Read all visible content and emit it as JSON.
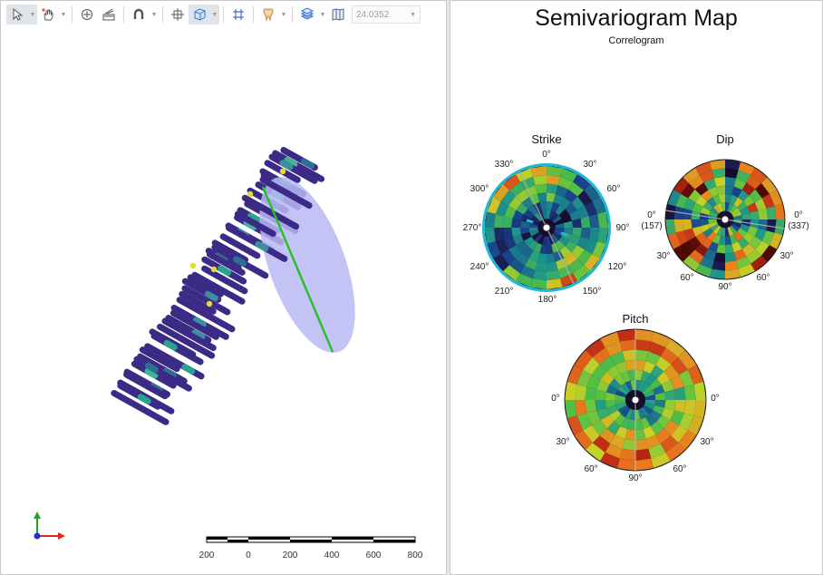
{
  "toolbar": {
    "tools": [
      {
        "icon": "select-arrow-icon",
        "dropdown": true
      },
      {
        "icon": "pan-hand-icon",
        "dropdown": true
      },
      {
        "icon": "look-at-icon",
        "dropdown": false
      },
      {
        "icon": "slice-plane-icon",
        "dropdown": false
      },
      {
        "icon": "magnet-icon",
        "dropdown": true
      },
      {
        "icon": "bounding-box-icon",
        "dropdown": false
      },
      {
        "icon": "view-cube-icon",
        "dropdown": true
      },
      {
        "icon": "grid-icon",
        "dropdown": false
      },
      {
        "icon": "tooth-shape-icon",
        "dropdown": true
      },
      {
        "icon": "layers-icon",
        "dropdown": true
      },
      {
        "icon": "map-icon",
        "dropdown": false
      }
    ],
    "zoom_value": "24.0352"
  },
  "scale_bar": {
    "labels": [
      "200",
      "0",
      "200",
      "400",
      "600",
      "800"
    ]
  },
  "semivariogram": {
    "title": "Semivariogram Map",
    "subtitle": "Correlogram",
    "strike": {
      "title": "Strike",
      "labels": [
        "0°",
        "30°",
        "60°",
        "90°",
        "120°",
        "150°",
        "180°",
        "210°",
        "240°",
        "270°",
        "300°",
        "330°"
      ]
    },
    "dip": {
      "title": "Dip",
      "labels": {
        "left": "0°\n(157)",
        "right": "0°\n(337)",
        "lower_left_30": "30°",
        "lower_right_30": "30°",
        "lower_left_60": "60°",
        "lower_right_60": "60°",
        "bottom": "90°"
      }
    },
    "pitch": {
      "title": "Pitch",
      "labels": {
        "left": "0°",
        "right": "0°",
        "lower_left_30": "30°",
        "lower_right_30": "30°",
        "lower_left_60": "60°",
        "lower_right_60": "60°",
        "bottom": "90°"
      }
    }
  },
  "colors": {
    "strike_rim": "#1fb7d9",
    "trajectory": "#23c11f",
    "ellipse": "#b9b8f4",
    "axis_x": "#e0281d",
    "axis_y": "#1ea81e",
    "axis_z": "#2233cc",
    "drill_hole": "#3c2b86"
  }
}
